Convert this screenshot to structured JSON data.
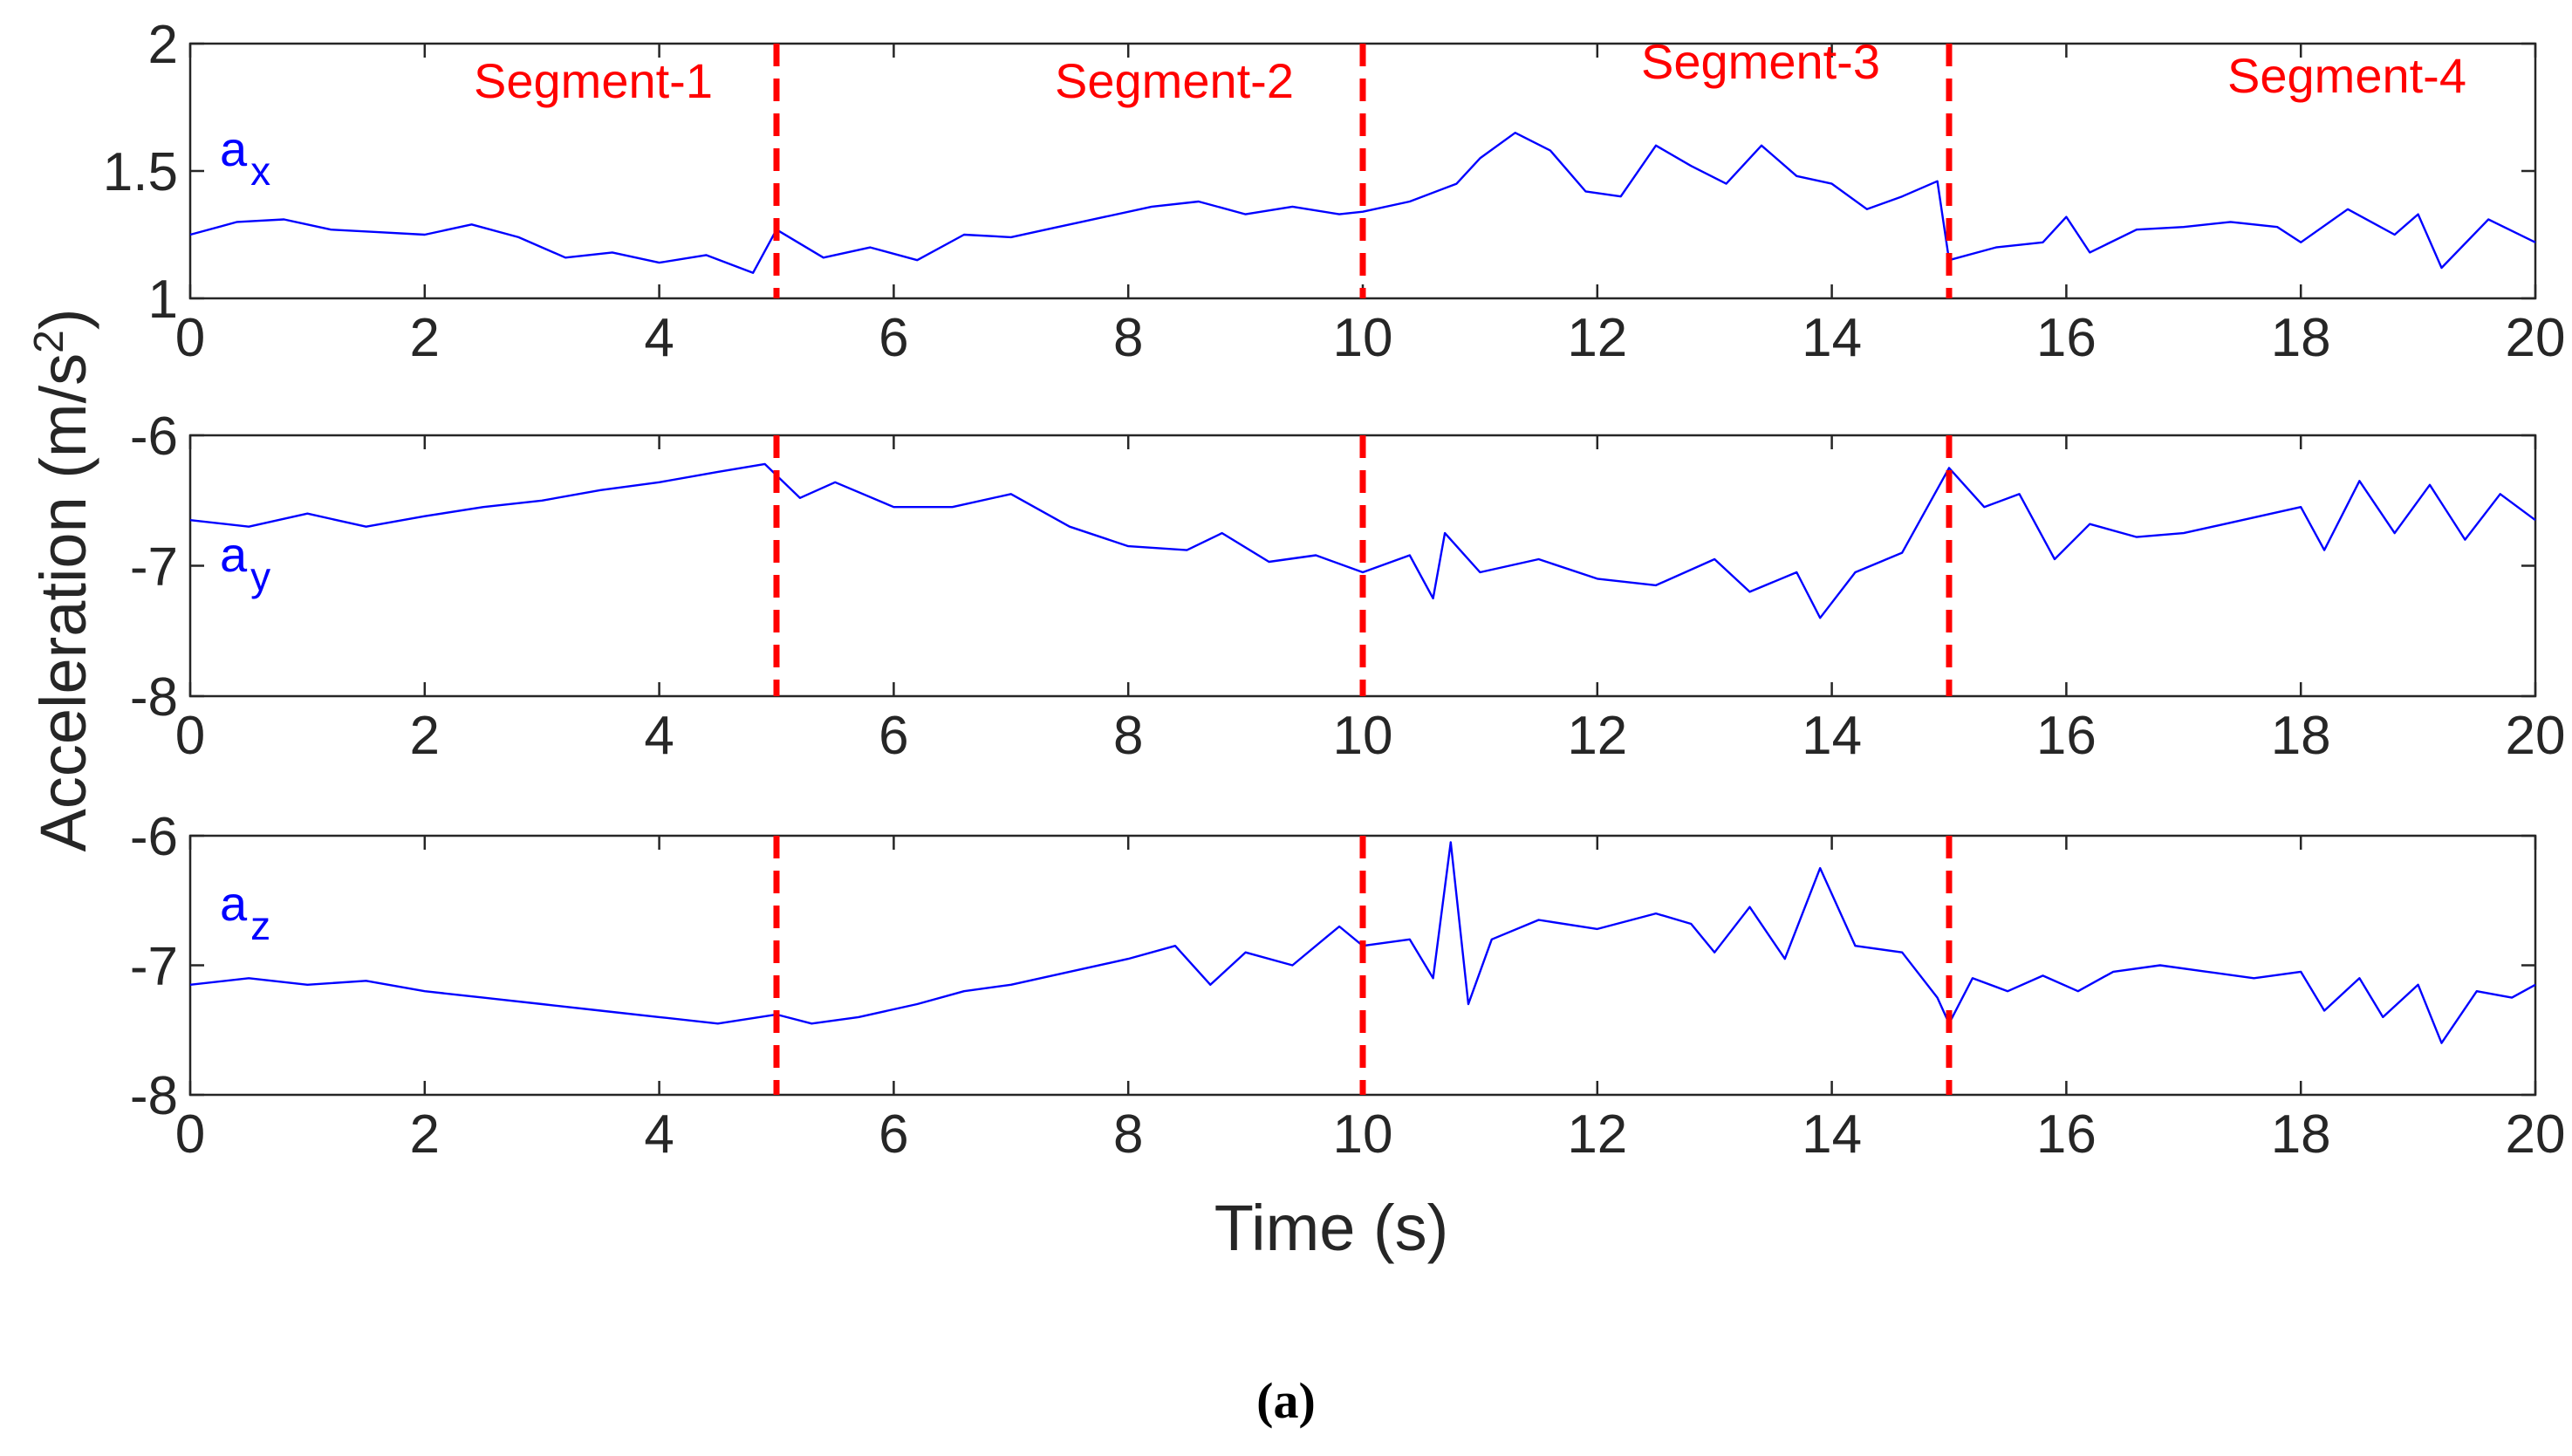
{
  "chart_data": {
    "type": "line",
    "caption": "(a)",
    "xlabel": "Time (s)",
    "ylabel": "Acceleration (m/s",
    "ylabel_superscript": "2",
    "ylabel_close": ")",
    "xlim": [
      0,
      20
    ],
    "xticks": [
      "0",
      "2",
      "4",
      "6",
      "8",
      "10",
      "12",
      "14",
      "16",
      "18",
      "20"
    ],
    "segment_boundaries_s": [
      5,
      10,
      15
    ],
    "segment_color": "#ff0000",
    "line_color": "#0000ff",
    "segments": [
      "Segment-1",
      "Segment-2",
      "Segment-3",
      "Segment-4"
    ],
    "panels": [
      {
        "name": "ax",
        "label_main": "a",
        "label_sub": "x",
        "ylim": [
          1,
          2
        ],
        "yticks": [
          {
            "value": 1,
            "label": "1"
          },
          {
            "value": 1.5,
            "label": "1.5"
          },
          {
            "value": 2,
            "label": "2"
          }
        ],
        "series": [
          [
            0,
            1.25
          ],
          [
            0.4,
            1.3
          ],
          [
            0.8,
            1.31
          ],
          [
            1.2,
            1.27
          ],
          [
            1.6,
            1.26
          ],
          [
            2.0,
            1.25
          ],
          [
            2.4,
            1.29
          ],
          [
            2.8,
            1.24
          ],
          [
            3.2,
            1.16
          ],
          [
            3.6,
            1.18
          ],
          [
            4.0,
            1.14
          ],
          [
            4.4,
            1.17
          ],
          [
            4.8,
            1.1
          ],
          [
            5.0,
            1.27
          ],
          [
            5.4,
            1.16
          ],
          [
            5.8,
            1.2
          ],
          [
            6.2,
            1.15
          ],
          [
            6.6,
            1.25
          ],
          [
            7.0,
            1.24
          ],
          [
            7.4,
            1.28
          ],
          [
            7.8,
            1.32
          ],
          [
            8.2,
            1.36
          ],
          [
            8.6,
            1.38
          ],
          [
            9.0,
            1.33
          ],
          [
            9.4,
            1.36
          ],
          [
            9.8,
            1.33
          ],
          [
            10.0,
            1.34
          ],
          [
            10.4,
            1.38
          ],
          [
            10.8,
            1.45
          ],
          [
            11.0,
            1.55
          ],
          [
            11.3,
            1.65
          ],
          [
            11.6,
            1.58
          ],
          [
            11.9,
            1.42
          ],
          [
            12.2,
            1.4
          ],
          [
            12.5,
            1.6
          ],
          [
            12.8,
            1.52
          ],
          [
            13.1,
            1.45
          ],
          [
            13.4,
            1.6
          ],
          [
            13.7,
            1.48
          ],
          [
            14.0,
            1.45
          ],
          [
            14.3,
            1.35
          ],
          [
            14.6,
            1.4
          ],
          [
            14.9,
            1.46
          ],
          [
            15.0,
            1.15
          ],
          [
            15.4,
            1.2
          ],
          [
            15.8,
            1.22
          ],
          [
            16.0,
            1.32
          ],
          [
            16.2,
            1.18
          ],
          [
            16.6,
            1.27
          ],
          [
            17.0,
            1.28
          ],
          [
            17.4,
            1.3
          ],
          [
            17.8,
            1.28
          ],
          [
            18.0,
            1.22
          ],
          [
            18.4,
            1.35
          ],
          [
            18.8,
            1.25
          ],
          [
            19.0,
            1.33
          ],
          [
            19.2,
            1.12
          ],
          [
            19.6,
            1.31
          ],
          [
            20.0,
            1.22
          ]
        ]
      },
      {
        "name": "ay",
        "label_main": "a",
        "label_sub": "y",
        "ylim": [
          -8,
          -6
        ],
        "yticks": [
          {
            "value": -6,
            "label": "-6"
          },
          {
            "value": -7,
            "label": "-7"
          },
          {
            "value": -8,
            "label": "-8"
          }
        ],
        "series": [
          [
            0,
            -6.65
          ],
          [
            0.5,
            -6.7
          ],
          [
            1.0,
            -6.6
          ],
          [
            1.5,
            -6.7
          ],
          [
            2.0,
            -6.62
          ],
          [
            2.5,
            -6.55
          ],
          [
            3.0,
            -6.5
          ],
          [
            3.5,
            -6.42
          ],
          [
            4.0,
            -6.36
          ],
          [
            4.5,
            -6.28
          ],
          [
            4.9,
            -6.22
          ],
          [
            5.2,
            -6.48
          ],
          [
            5.5,
            -6.36
          ],
          [
            6.0,
            -6.55
          ],
          [
            6.5,
            -6.55
          ],
          [
            7.0,
            -6.45
          ],
          [
            7.5,
            -6.7
          ],
          [
            8.0,
            -6.85
          ],
          [
            8.5,
            -6.88
          ],
          [
            8.8,
            -6.75
          ],
          [
            9.2,
            -6.97
          ],
          [
            9.6,
            -6.92
          ],
          [
            10.0,
            -7.05
          ],
          [
            10.4,
            -6.92
          ],
          [
            10.6,
            -7.25
          ],
          [
            10.7,
            -6.75
          ],
          [
            11.0,
            -7.05
          ],
          [
            11.5,
            -6.95
          ],
          [
            12.0,
            -7.1
          ],
          [
            12.5,
            -7.15
          ],
          [
            13.0,
            -6.95
          ],
          [
            13.3,
            -7.2
          ],
          [
            13.7,
            -7.05
          ],
          [
            13.9,
            -7.4
          ],
          [
            14.2,
            -7.05
          ],
          [
            14.6,
            -6.9
          ],
          [
            15.0,
            -6.25
          ],
          [
            15.3,
            -6.55
          ],
          [
            15.6,
            -6.45
          ],
          [
            15.9,
            -6.95
          ],
          [
            16.2,
            -6.68
          ],
          [
            16.6,
            -6.78
          ],
          [
            17.0,
            -6.75
          ],
          [
            17.5,
            -6.65
          ],
          [
            18.0,
            -6.55
          ],
          [
            18.2,
            -6.88
          ],
          [
            18.5,
            -6.35
          ],
          [
            18.8,
            -6.75
          ],
          [
            19.1,
            -6.38
          ],
          [
            19.4,
            -6.8
          ],
          [
            19.7,
            -6.45
          ],
          [
            20.0,
            -6.65
          ]
        ]
      },
      {
        "name": "az",
        "label_main": "a",
        "label_sub": "z",
        "ylim": [
          -8,
          -6
        ],
        "yticks": [
          {
            "value": -6,
            "label": "-6"
          },
          {
            "value": -7,
            "label": "-7"
          },
          {
            "value": -8,
            "label": "-8"
          }
        ],
        "series": [
          [
            0,
            -7.15
          ],
          [
            0.5,
            -7.1
          ],
          [
            1.0,
            -7.15
          ],
          [
            1.5,
            -7.12
          ],
          [
            2.0,
            -7.2
          ],
          [
            2.5,
            -7.25
          ],
          [
            3.0,
            -7.3
          ],
          [
            3.5,
            -7.35
          ],
          [
            4.0,
            -7.4
          ],
          [
            4.5,
            -7.45
          ],
          [
            5.0,
            -7.38
          ],
          [
            5.3,
            -7.45
          ],
          [
            5.7,
            -7.4
          ],
          [
            6.2,
            -7.3
          ],
          [
            6.6,
            -7.2
          ],
          [
            7.0,
            -7.15
          ],
          [
            7.5,
            -7.05
          ],
          [
            8.0,
            -6.95
          ],
          [
            8.4,
            -6.85
          ],
          [
            8.7,
            -7.15
          ],
          [
            9.0,
            -6.9
          ],
          [
            9.4,
            -7.0
          ],
          [
            9.8,
            -6.7
          ],
          [
            10.0,
            -6.85
          ],
          [
            10.4,
            -6.8
          ],
          [
            10.6,
            -7.1
          ],
          [
            10.75,
            -6.05
          ],
          [
            10.9,
            -7.3
          ],
          [
            11.1,
            -6.8
          ],
          [
            11.5,
            -6.65
          ],
          [
            12.0,
            -6.72
          ],
          [
            12.5,
            -6.6
          ],
          [
            12.8,
            -6.68
          ],
          [
            13.0,
            -6.9
          ],
          [
            13.3,
            -6.55
          ],
          [
            13.6,
            -6.95
          ],
          [
            13.9,
            -6.25
          ],
          [
            14.2,
            -6.85
          ],
          [
            14.6,
            -6.9
          ],
          [
            14.9,
            -7.25
          ],
          [
            15.0,
            -7.45
          ],
          [
            15.2,
            -7.1
          ],
          [
            15.5,
            -7.2
          ],
          [
            15.8,
            -7.08
          ],
          [
            16.1,
            -7.2
          ],
          [
            16.4,
            -7.05
          ],
          [
            16.8,
            -7.0
          ],
          [
            17.2,
            -7.05
          ],
          [
            17.6,
            -7.1
          ],
          [
            18.0,
            -7.05
          ],
          [
            18.2,
            -7.35
          ],
          [
            18.5,
            -7.1
          ],
          [
            18.7,
            -7.4
          ],
          [
            19.0,
            -7.15
          ],
          [
            19.2,
            -7.6
          ],
          [
            19.5,
            -7.2
          ],
          [
            19.8,
            -7.25
          ],
          [
            20.0,
            -7.15
          ]
        ]
      }
    ]
  }
}
